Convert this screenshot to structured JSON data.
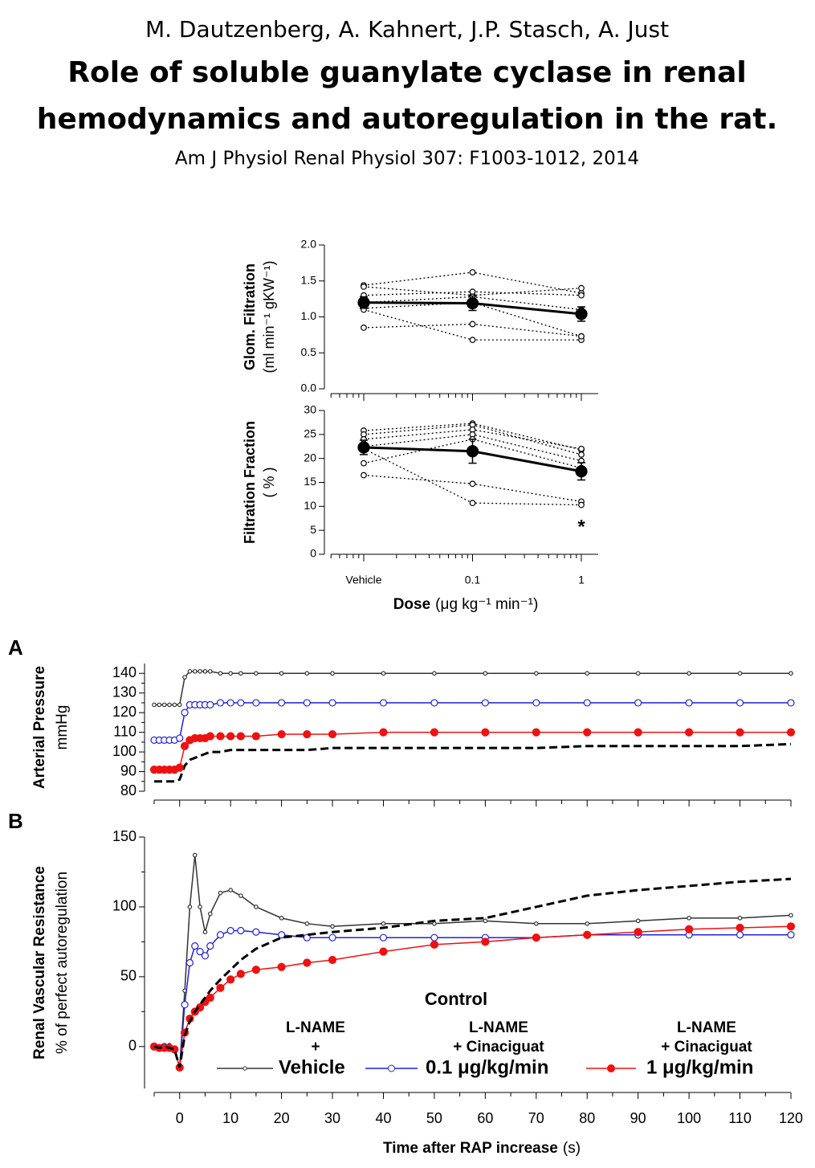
{
  "header": {
    "authors": "M. Dautzenberg, A. Kahnert, J.P. Stasch, A. Just",
    "title": [
      "Role of soluble guanylate cyclase in renal",
      "hemodynamics and autoregulation in the rat."
    ],
    "citation": "Am J Physiol Renal Physiol 307: F1003-1012, 2014"
  },
  "chart_data": [
    {
      "type": "line",
      "ylabel": [
        "Glom. Filtration",
        "(ml min⁻¹ gKW⁻¹)"
      ],
      "categories": [
        "Vehicle",
        "0.1",
        "1"
      ],
      "xtick_labels": false,
      "ylim": [
        0,
        2
      ],
      "yticks": [
        {
          "value": 0,
          "label": "0.0"
        },
        0.5,
        {
          "value": 1,
          "label": "1.0"
        },
        1.5,
        {
          "value": 2,
          "label": "2.0"
        }
      ],
      "series": [
        {
          "color": "#000000",
          "linestyle": "dotted",
          "marker": "open-circle",
          "values": [
            1.44,
            1.62,
            1.33
          ]
        },
        {
          "color": "#000000",
          "linestyle": "dotted",
          "marker": "open-circle",
          "values": [
            1.42,
            1.3,
            1.4
          ]
        },
        {
          "color": "#000000",
          "linestyle": "dotted",
          "marker": "open-circle",
          "values": [
            1.3,
            1.35,
            1.3
          ]
        },
        {
          "color": "#000000",
          "linestyle": "dotted",
          "marker": "open-circle",
          "values": [
            1.2,
            1.28,
            1.1
          ]
        },
        {
          "color": "#000000",
          "linestyle": "dotted",
          "marker": "open-circle",
          "values": [
            1.12,
            1.2,
            0.73
          ]
        },
        {
          "color": "#000000",
          "linestyle": "dotted",
          "marker": "open-circle",
          "values": [
            1.1,
            0.68,
            0.68
          ]
        },
        {
          "color": "#000000",
          "linestyle": "dotted",
          "marker": "open-circle",
          "values": [
            0.85,
            0.9,
            0.73
          ]
        },
        {
          "color": "#000000",
          "linestyle": "solid",
          "linewidth": 3,
          "marker": "filled-circle",
          "values": [
            1.2,
            1.19,
            1.04
          ],
          "errors": [
            0.08,
            0.1,
            0.1
          ]
        }
      ]
    },
    {
      "type": "line",
      "ylabel": [
        "Filtration Fraction",
        "( % )"
      ],
      "categories": [
        "Vehicle",
        "0.1",
        "1"
      ],
      "xlabel": [
        "Dose",
        "(μg kg⁻¹ min⁻¹)"
      ],
      "annotation": "*",
      "ylim": [
        0,
        30
      ],
      "yticks": [
        0,
        5,
        10,
        15,
        20,
        25,
        30
      ],
      "series": [
        {
          "color": "#000000",
          "linestyle": "dotted",
          "marker": "open-circle",
          "values": [
            25.8,
            27.3,
            21.8
          ]
        },
        {
          "color": "#000000",
          "linestyle": "dotted",
          "marker": "open-circle",
          "values": [
            25,
            27,
            20.8
          ]
        },
        {
          "color": "#000000",
          "linestyle": "dotted",
          "marker": "open-circle",
          "values": [
            24,
            26,
            22
          ]
        },
        {
          "color": "#000000",
          "linestyle": "dotted",
          "marker": "open-circle",
          "values": [
            22.5,
            25,
            19.5
          ]
        },
        {
          "color": "#000000",
          "linestyle": "dotted",
          "marker": "open-circle",
          "values": [
            19,
            24,
            18
          ]
        },
        {
          "color": "#000000",
          "linestyle": "dotted",
          "marker": "open-circle",
          "values": [
            16.5,
            14.7,
            11
          ]
        },
        {
          "color": "#000000",
          "linestyle": "dotted",
          "marker": "open-circle",
          "values": [
            22,
            10.7,
            10.3
          ]
        },
        {
          "color": "#000000",
          "linestyle": "solid",
          "linewidth": 3,
          "marker": "filled-circle",
          "values": [
            22.3,
            21.5,
            17.3
          ],
          "errors": [
            1.5,
            2.5,
            1.8
          ]
        }
      ]
    },
    {
      "type": "line",
      "panel": "A",
      "ylabel": [
        "Arterial Pressure",
        "mmHg"
      ],
      "x": [
        -5,
        -4,
        -3,
        -2,
        -1,
        0,
        1,
        2,
        3,
        4,
        5,
        6,
        8,
        10,
        12,
        15,
        20,
        25,
        30,
        40,
        50,
        60,
        70,
        80,
        90,
        100,
        110,
        120
      ],
      "xlim": [
        -5,
        120
      ],
      "xticks": [
        0,
        10,
        20,
        30,
        40,
        50,
        60,
        70,
        80,
        90,
        100,
        110,
        120
      ],
      "xtick_labels": false,
      "ylim": [
        80,
        145
      ],
      "yticks": [
        80,
        90,
        100,
        110,
        120,
        130,
        140
      ],
      "series": [
        {
          "color": "#000000",
          "linestyle": "dashed",
          "linewidth": 3,
          "marker": "none",
          "values": [
            85,
            85,
            85,
            85,
            85,
            86,
            93,
            96,
            97,
            98,
            99,
            100,
            100,
            101,
            101,
            101,
            101,
            101,
            102,
            102,
            102,
            102,
            102,
            103,
            103,
            103,
            103,
            104
          ]
        },
        {
          "color": "#333333",
          "linestyle": "solid",
          "marker": "small-open-circle",
          "values": [
            124,
            124,
            124,
            124,
            124,
            124,
            138,
            141,
            141,
            141,
            141,
            141,
            140,
            140,
            140,
            140,
            140,
            140,
            140,
            140,
            140,
            140,
            140,
            140,
            140,
            140,
            140,
            140
          ]
        },
        {
          "color": "#2020e0",
          "linestyle": "solid",
          "marker": "open-circle",
          "values": [
            106,
            106,
            106,
            106,
            106,
            107,
            120,
            124,
            124,
            124,
            124,
            124,
            125,
            125,
            125,
            125,
            125,
            125,
            125,
            125,
            125,
            125,
            125,
            125,
            125,
            125,
            125,
            125
          ]
        },
        {
          "color": "#ee1111",
          "linestyle": "solid",
          "marker": "filled-circle",
          "values": [
            91,
            91,
            91,
            91,
            91,
            92,
            103,
            106,
            107,
            107,
            107,
            108,
            108,
            108,
            108,
            108,
            109,
            109,
            109,
            110,
            110,
            110,
            110,
            110,
            110,
            110,
            110,
            110
          ]
        }
      ]
    },
    {
      "type": "line",
      "panel": "B",
      "ylabel": [
        "Renal Vascular Resistance",
        "% of perfect autoregulation"
      ],
      "xlabel": [
        "Time after RAP increase",
        "(s)"
      ],
      "x": [
        -5,
        -4,
        -3,
        -2,
        -1,
        0,
        1,
        2,
        3,
        4,
        5,
        6,
        8,
        10,
        12,
        15,
        20,
        25,
        30,
        40,
        50,
        60,
        70,
        80,
        90,
        100,
        110,
        120
      ],
      "xlim": [
        -5,
        120
      ],
      "xticks": [
        0,
        10,
        20,
        30,
        40,
        50,
        60,
        70,
        80,
        90,
        100,
        110,
        120
      ],
      "ylim": [
        -30,
        150
      ],
      "yticks": [
        0,
        50,
        100,
        150
      ],
      "series": [
        {
          "name": "Vehicle",
          "legend_lines": [
            "L-NAME",
            "+"
          ],
          "color": "#333333",
          "linestyle": "solid",
          "marker": "small-open-circle",
          "values": [
            0,
            -1,
            0,
            1,
            -2,
            -15,
            40,
            100,
            137,
            100,
            82,
            95,
            110,
            112,
            108,
            100,
            92,
            88,
            86,
            88,
            88,
            90,
            88,
            88,
            90,
            92,
            92,
            94
          ]
        },
        {
          "name": "0.1 μg/kg/min",
          "legend_lines": [
            "L-NAME",
            "+ Cinaciguat"
          ],
          "color": "#2020e0",
          "linestyle": "solid",
          "marker": "open-circle",
          "values": [
            0,
            -1,
            0,
            -1,
            -2,
            -15,
            30,
            60,
            72,
            68,
            65,
            72,
            80,
            83,
            83,
            82,
            80,
            78,
            78,
            78,
            78,
            78,
            78,
            80,
            80,
            80,
            80,
            80
          ]
        },
        {
          "name": "1 μg/kg/min",
          "legend_lines": [
            "L-NAME",
            "+ Cinaciguat"
          ],
          "color": "#ee1111",
          "linestyle": "solid",
          "marker": "filled-circle",
          "values": [
            0,
            -1,
            -1,
            -1,
            -2,
            -15,
            10,
            20,
            25,
            28,
            32,
            35,
            42,
            48,
            52,
            55,
            57,
            60,
            62,
            68,
            73,
            75,
            78,
            80,
            82,
            84,
            85,
            86
          ]
        },
        {
          "name": "Control",
          "color": "#000000",
          "linestyle": "dashed",
          "linewidth": 3,
          "marker": "none",
          "values": [
            0,
            -1,
            0,
            -1,
            -2,
            -15,
            8,
            18,
            25,
            30,
            35,
            40,
            48,
            55,
            62,
            70,
            78,
            80,
            82,
            85,
            90,
            92,
            100,
            108,
            112,
            115,
            118,
            120
          ]
        }
      ]
    }
  ]
}
